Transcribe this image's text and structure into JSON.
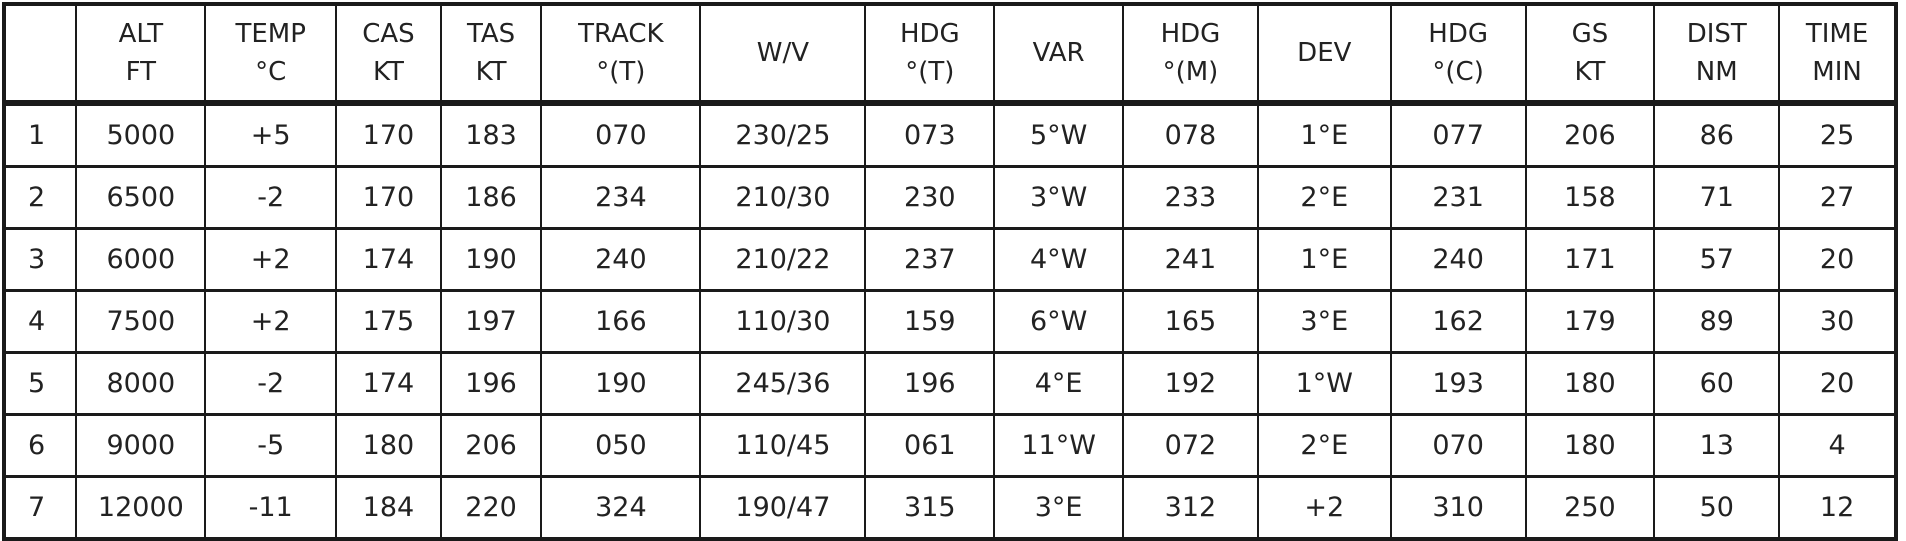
{
  "table": {
    "headers": [
      {
        "l1": "",
        "l2": ""
      },
      {
        "l1": "ALT",
        "l2": "FT"
      },
      {
        "l1": "TEMP",
        "l2": "°C"
      },
      {
        "l1": "CAS",
        "l2": "KT"
      },
      {
        "l1": "TAS",
        "l2": "KT"
      },
      {
        "l1": "TRACK",
        "l2": "°(T)"
      },
      {
        "l1": "W/V",
        "l2": ""
      },
      {
        "l1": "HDG",
        "l2": "°(T)"
      },
      {
        "l1": "VAR",
        "l2": ""
      },
      {
        "l1": "HDG",
        "l2": "°(M)"
      },
      {
        "l1": "DEV",
        "l2": ""
      },
      {
        "l1": "HDG",
        "l2": "°(C)"
      },
      {
        "l1": "GS",
        "l2": "KT"
      },
      {
        "l1": "DIST",
        "l2": "NM"
      },
      {
        "l1": "TIME",
        "l2": "MIN"
      }
    ],
    "rows": [
      [
        "1",
        "5000",
        "+5",
        "170",
        "183",
        "070",
        "230/25",
        "073",
        "5°W",
        "078",
        "1°E",
        "077",
        "206",
        "86",
        "25"
      ],
      [
        "2",
        "6500",
        "-2",
        "170",
        "186",
        "234",
        "210/30",
        "230",
        "3°W",
        "233",
        "2°E",
        "231",
        "158",
        "71",
        "27"
      ],
      [
        "3",
        "6000",
        "+2",
        "174",
        "190",
        "240",
        "210/22",
        "237",
        "4°W",
        "241",
        "1°E",
        "240",
        "171",
        "57",
        "20"
      ],
      [
        "4",
        "7500",
        "+2",
        "175",
        "197",
        "166",
        "110/30",
        "159",
        "6°W",
        "165",
        "3°E",
        "162",
        "179",
        "89",
        "30"
      ],
      [
        "5",
        "8000",
        "-2",
        "174",
        "196",
        "190",
        "245/36",
        "196",
        "4°E",
        "192",
        "1°W",
        "193",
        "180",
        "60",
        "20"
      ],
      [
        "6",
        "9000",
        "-5",
        "180",
        "206",
        "050",
        "110/45",
        "061",
        "11°W",
        "072",
        "2°E",
        "070",
        "180",
        "13",
        "4"
      ],
      [
        "7",
        "12000",
        "-11",
        "184",
        "220",
        "324",
        "190/47",
        "315",
        "3°E",
        "312",
        "+2",
        "310",
        "250",
        "50",
        "12"
      ]
    ]
  }
}
